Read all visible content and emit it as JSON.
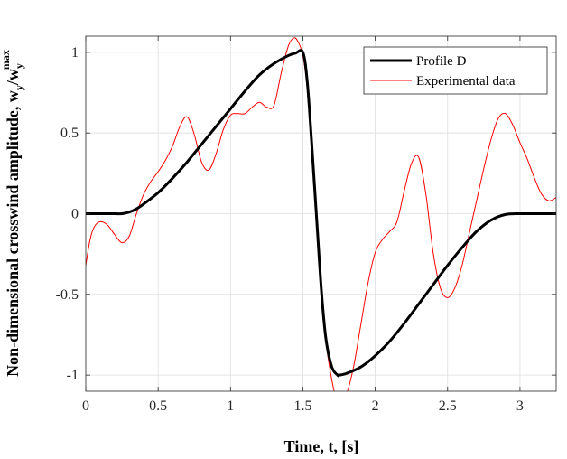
{
  "chart_data": {
    "type": "line",
    "xlabel": "Time, t, [s]",
    "ylabel_main": "Non-dimensional crosswind amplitude, w",
    "ylabel_sub1": "y",
    "ylabel_mid": "/w",
    "ylabel_sub2": "y",
    "ylabel_sup": "max",
    "xlim": [
      0,
      3.25
    ],
    "ylim": [
      -1.1,
      1.1
    ],
    "xticks": [
      0,
      0.5,
      1,
      1.5,
      2,
      2.5,
      3
    ],
    "xtick_labels": [
      "0",
      "0.5",
      "1",
      "1.5",
      "2",
      "2.5",
      "3"
    ],
    "yticks": [
      -1,
      -0.5,
      0,
      0.5,
      1
    ],
    "ytick_labels": [
      "-1",
      "-0.5",
      "0",
      "0.5",
      "1"
    ],
    "grid": true,
    "legend_position": "top-right",
    "series": [
      {
        "name": "Profile D",
        "color": "#000000",
        "x": [
          0,
          0.1,
          0.2,
          0.25,
          0.3,
          0.35,
          0.4,
          0.5,
          0.6,
          0.7,
          0.8,
          0.9,
          1.0,
          1.1,
          1.2,
          1.3,
          1.4,
          1.45,
          1.5,
          1.53,
          1.56,
          1.6,
          1.63,
          1.66,
          1.7,
          1.74,
          1.75,
          1.8,
          1.9,
          2.0,
          2.1,
          2.2,
          2.3,
          2.4,
          2.5,
          2.6,
          2.7,
          2.8,
          2.9,
          3.0,
          3.1,
          3.25
        ],
        "y": [
          0,
          0,
          0,
          0,
          0.01,
          0.03,
          0.06,
          0.13,
          0.22,
          0.32,
          0.43,
          0.54,
          0.65,
          0.76,
          0.86,
          0.93,
          0.98,
          0.995,
          1.0,
          0.82,
          0.45,
          -0.1,
          -0.5,
          -0.78,
          -0.95,
          -1.0,
          -1.0,
          -0.99,
          -0.95,
          -0.88,
          -0.79,
          -0.68,
          -0.56,
          -0.44,
          -0.32,
          -0.21,
          -0.11,
          -0.04,
          -0.005,
          0,
          0,
          0
        ]
      },
      {
        "name": "Experimental data",
        "color": "#ff0000",
        "x": [
          0,
          0.03,
          0.06,
          0.1,
          0.15,
          0.2,
          0.25,
          0.3,
          0.35,
          0.4,
          0.45,
          0.5,
          0.55,
          0.6,
          0.65,
          0.7,
          0.75,
          0.8,
          0.85,
          0.9,
          0.95,
          1.0,
          1.05,
          1.1,
          1.15,
          1.2,
          1.25,
          1.3,
          1.35,
          1.4,
          1.44,
          1.47,
          1.5,
          1.53,
          1.56,
          1.6,
          1.63,
          1.66,
          1.7,
          1.73,
          1.76,
          1.8,
          1.85,
          1.9,
          1.95,
          2.0,
          2.05,
          2.1,
          2.15,
          2.2,
          2.25,
          2.3,
          2.35,
          2.4,
          2.45,
          2.5,
          2.55,
          2.6,
          2.65,
          2.7,
          2.75,
          2.8,
          2.85,
          2.9,
          2.95,
          3.0,
          3.05,
          3.1,
          3.15,
          3.2,
          3.25
        ],
        "y": [
          -0.32,
          -0.16,
          -0.08,
          -0.05,
          -0.07,
          -0.13,
          -0.18,
          -0.14,
          0.0,
          0.12,
          0.2,
          0.26,
          0.33,
          0.42,
          0.54,
          0.6,
          0.49,
          0.32,
          0.27,
          0.37,
          0.52,
          0.61,
          0.62,
          0.62,
          0.66,
          0.69,
          0.66,
          0.67,
          0.87,
          1.04,
          1.09,
          1.06,
          0.98,
          0.78,
          0.42,
          -0.14,
          -0.5,
          -0.8,
          -1.03,
          -1.14,
          -1.15,
          -1.12,
          -0.95,
          -0.69,
          -0.43,
          -0.24,
          -0.16,
          -0.11,
          -0.05,
          0.14,
          0.31,
          0.35,
          0.12,
          -0.24,
          -0.46,
          -0.52,
          -0.46,
          -0.32,
          -0.12,
          0.08,
          0.28,
          0.46,
          0.59,
          0.62,
          0.55,
          0.44,
          0.34,
          0.22,
          0.12,
          0.08,
          0.1
        ]
      }
    ]
  }
}
